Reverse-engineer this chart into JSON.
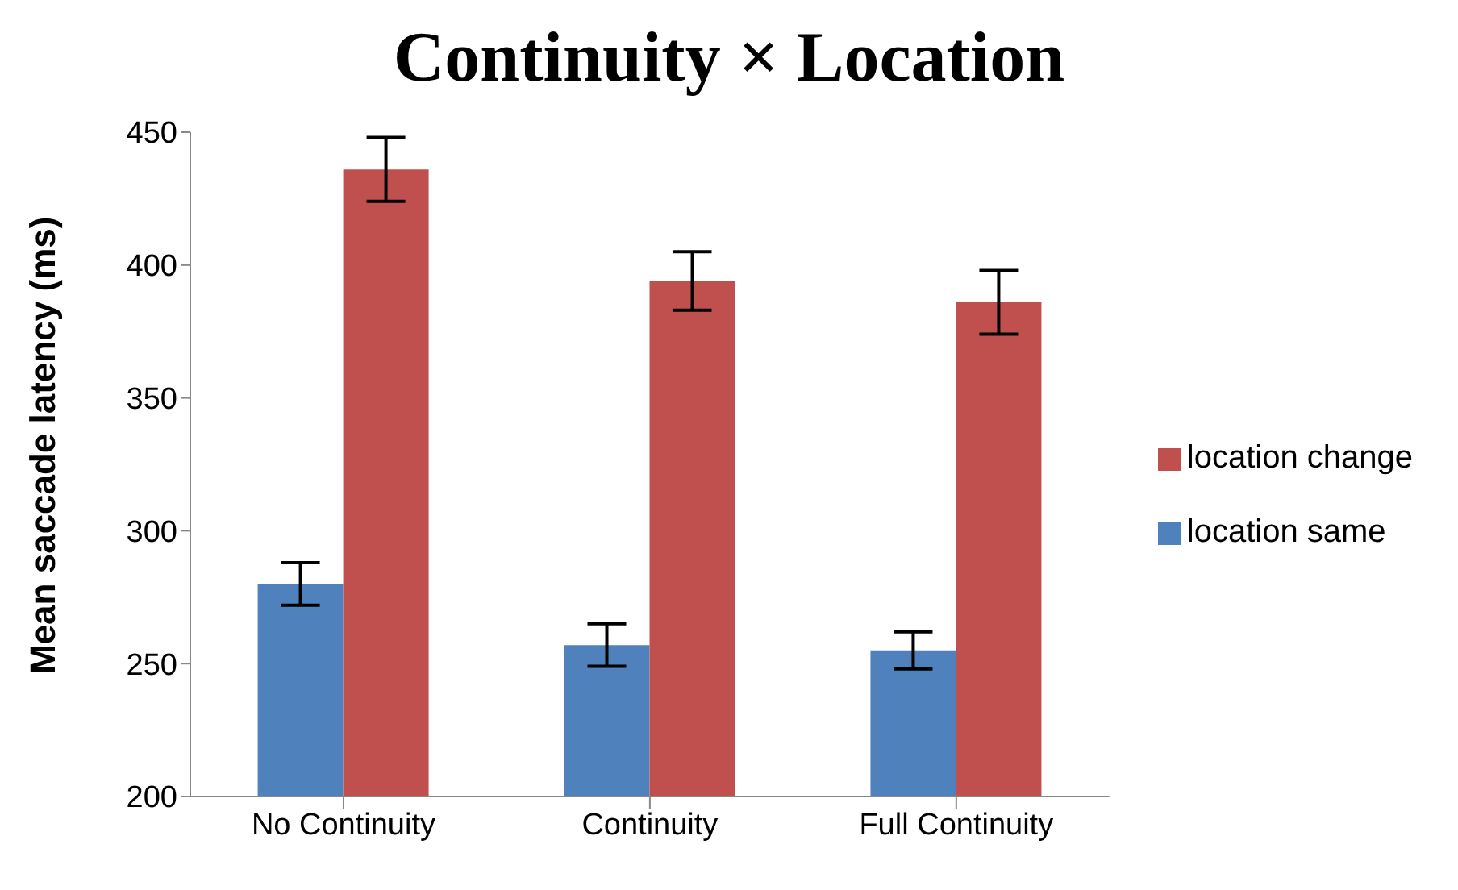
{
  "chart_data": {
    "type": "bar",
    "title": "Continuity × Location",
    "ylabel": "Mean saccade latency (ms)",
    "categories": [
      "No Continuity",
      "Continuity",
      "Full Continuity"
    ],
    "series": [
      {
        "name": "location same",
        "color": "#4f81bd",
        "values": [
          280,
          257,
          255
        ],
        "errors": [
          8,
          8,
          7
        ]
      },
      {
        "name": "location change",
        "color": "#c0504d",
        "values": [
          436,
          394,
          386
        ],
        "errors": [
          12,
          11,
          12
        ]
      }
    ],
    "ylim": [
      200,
      450
    ],
    "yticks": [
      200,
      250,
      300,
      350,
      400,
      450
    ],
    "grid": false,
    "legend": "right"
  }
}
